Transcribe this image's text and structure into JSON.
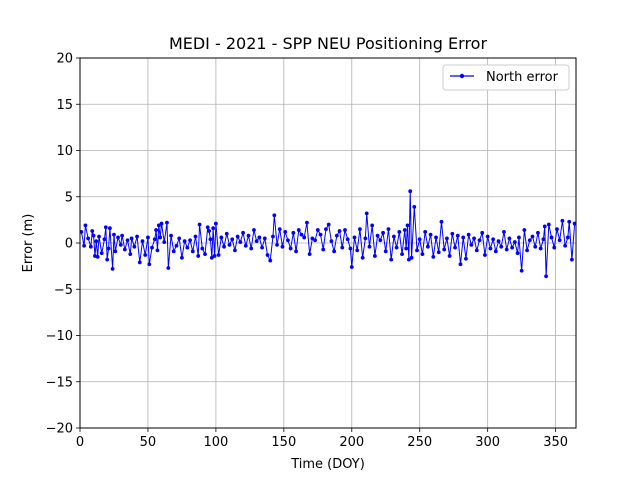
{
  "chart_data": {
    "type": "line",
    "title": "MEDI - 2021 - SPP NEU Positioning Error",
    "xlabel": "Time (DOY)",
    "ylabel": "Error (m)",
    "xlim": [
      0,
      365
    ],
    "ylim": [
      -20,
      20
    ],
    "xticks": [
      0,
      50,
      100,
      150,
      200,
      250,
      300,
      350
    ],
    "yticks": [
      -20,
      -15,
      -10,
      -5,
      0,
      5,
      10,
      15,
      20
    ],
    "grid": true,
    "legend_position": "top-right",
    "series": [
      {
        "name": "North error",
        "color": "#0000ff",
        "marker": "circle",
        "x": [
          1,
          3,
          4,
          6,
          8,
          9,
          10,
          11,
          12,
          13,
          14,
          16,
          18,
          19,
          20,
          21,
          22,
          24,
          25,
          26,
          28,
          30,
          31,
          33,
          35,
          37,
          38,
          40,
          42,
          44,
          46,
          48,
          50,
          51,
          53,
          55,
          56,
          57,
          58,
          59,
          60,
          62,
          64,
          65,
          67,
          69,
          71,
          73,
          75,
          77,
          79,
          81,
          83,
          85,
          87,
          88,
          90,
          92,
          94,
          95,
          96,
          97,
          98,
          99,
          100,
          102,
          104,
          106,
          108,
          110,
          112,
          114,
          116,
          118,
          120,
          122,
          124,
          126,
          128,
          130,
          132,
          134,
          136,
          138,
          140,
          142,
          143,
          145,
          147,
          149,
          151,
          153,
          155,
          157,
          159,
          161,
          163,
          165,
          167,
          169,
          171,
          173,
          175,
          177,
          179,
          181,
          183,
          185,
          187,
          189,
          191,
          193,
          195,
          197,
          199,
          200,
          202,
          204,
          206,
          208,
          210,
          211,
          213,
          215,
          217,
          219,
          221,
          223,
          225,
          227,
          229,
          231,
          233,
          235,
          237,
          239,
          240,
          241,
          242,
          243,
          244,
          246,
          248,
          250,
          252,
          254,
          256,
          258,
          260,
          262,
          264,
          266,
          268,
          270,
          272,
          274,
          276,
          278,
          280,
          282,
          284,
          286,
          288,
          290,
          292,
          294,
          296,
          298,
          300,
          302,
          304,
          306,
          308,
          310,
          312,
          314,
          316,
          318,
          320,
          322,
          323,
          325,
          327,
          329,
          331,
          333,
          335,
          337,
          339,
          341,
          342,
          343,
          345,
          347,
          349,
          351,
          353,
          355,
          357,
          359,
          360,
          362,
          364
        ],
        "y": [
          1.2,
          -0.3,
          1.9,
          0.5,
          -0.4,
          1.3,
          0.8,
          -1.4,
          0.2,
          -1.5,
          0.7,
          -1.1,
          0.4,
          1.7,
          -1.8,
          -0.6,
          1.6,
          -2.8,
          0.9,
          -0.9,
          0.6,
          -0.2,
          0.8,
          -0.7,
          0.3,
          -1.2,
          0.5,
          -0.4,
          0.7,
          -2.1,
          0.2,
          -1.3,
          0.6,
          -2.3,
          -0.5,
          0.4,
          1.4,
          -0.8,
          1.9,
          0.6,
          2.1,
          0.1,
          2.2,
          -2.7,
          0.8,
          -0.9,
          -0.3,
          0.5,
          -1.6,
          0.2,
          -0.5,
          0.3,
          -0.9,
          0.7,
          -1.4,
          2.0,
          -0.6,
          -1.2,
          1.7,
          1.3,
          0.4,
          -1.6,
          1.6,
          -1.4,
          2.1,
          -1.3,
          0.6,
          -0.4,
          1.0,
          -0.2,
          0.4,
          -0.8,
          0.7,
          0.1,
          1.1,
          -0.3,
          0.8,
          -0.6,
          1.4,
          0.2,
          0.6,
          -0.5,
          0.5,
          -1.3,
          -1.9,
          0.7,
          3.0,
          -0.2,
          1.5,
          -0.4,
          1.2,
          0.3,
          -0.6,
          1.1,
          -0.9,
          1.4,
          0.9,
          0.6,
          2.2,
          -1.2,
          0.5,
          0.3,
          1.4,
          0.9,
          -0.7,
          1.5,
          2.0,
          0.2,
          -0.9,
          0.8,
          1.3,
          -0.5,
          1.4,
          0.4,
          -0.6,
          -2.6,
          0.6,
          -0.8,
          1.5,
          -1.6,
          0.5,
          3.2,
          -0.4,
          1.9,
          -1.4,
          0.8,
          0.3,
          1.1,
          -0.9,
          1.5,
          -1.8,
          0.7,
          -0.5,
          1.2,
          -1.2,
          1.4,
          -0.6,
          1.9,
          -1.8,
          5.6,
          -1.6,
          3.9,
          -0.8,
          0.4,
          -1.2,
          1.2,
          -0.4,
          0.9,
          -1.5,
          0.6,
          -1.0,
          2.3,
          -0.7,
          0.5,
          -1.4,
          1.0,
          -0.5,
          0.8,
          -2.3,
          0.6,
          -1.7,
          0.9,
          -0.2,
          0.5,
          -0.8,
          0.3,
          1.1,
          -1.3,
          0.7,
          -0.6,
          0.4,
          -0.9,
          0.2,
          -0.4,
          1.2,
          -0.7,
          0.5,
          -0.5,
          0.1,
          -1.1,
          0.6,
          -3.0,
          1.4,
          -0.8,
          0.3,
          0.7,
          -0.4,
          1.1,
          -0.6,
          0.4,
          1.8,
          -3.6,
          2.0,
          0.6,
          -0.5,
          1.5,
          0.3,
          2.4,
          -0.3,
          0.6,
          2.3,
          -1.8,
          2.1
        ]
      }
    ]
  }
}
